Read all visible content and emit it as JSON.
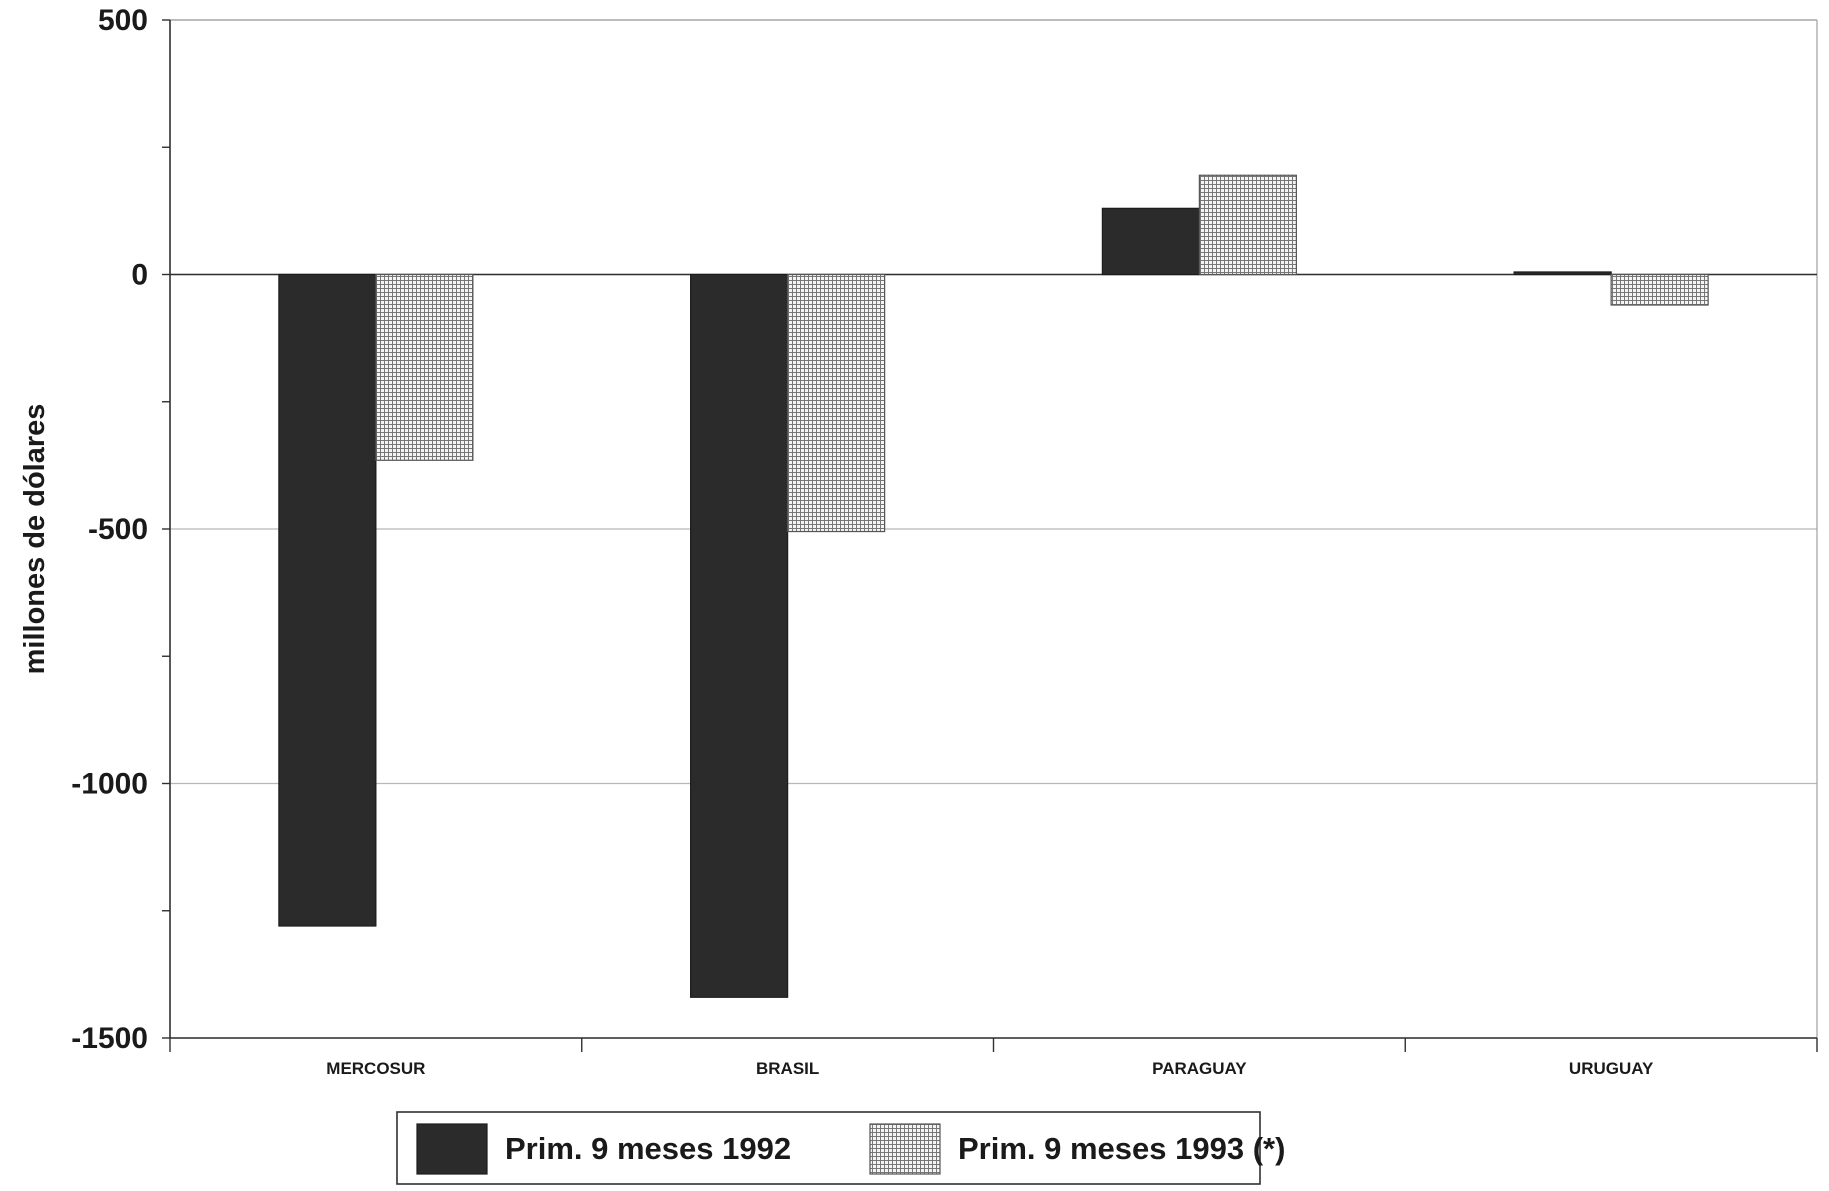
{
  "chart_data": {
    "type": "bar",
    "title": "",
    "xlabel": "",
    "ylabel": "millones de dólares",
    "categories": [
      "MERCOSUR",
      "BRASIL",
      "PARAGUAY",
      "URUGUAY"
    ],
    "series": [
      {
        "name": "Prim. 9 meses 1992",
        "values": [
          -1280,
          -1420,
          130,
          5
        ],
        "color": "#2b2b2b",
        "fill": "solid"
      },
      {
        "name": "Prim. 9 meses 1993 (*)",
        "values": [
          -365,
          -505,
          195,
          -60
        ],
        "color": "#8a8a8a",
        "fill": "crosshatch"
      }
    ],
    "ylim": [
      -1500,
      500
    ],
    "yticks": [
      500,
      0,
      -500,
      -1000,
      -1500
    ],
    "ytick_labels": [
      "500",
      "0",
      "-500",
      "-1000",
      "-1500"
    ],
    "grid": true,
    "legend_position": "bottom"
  }
}
